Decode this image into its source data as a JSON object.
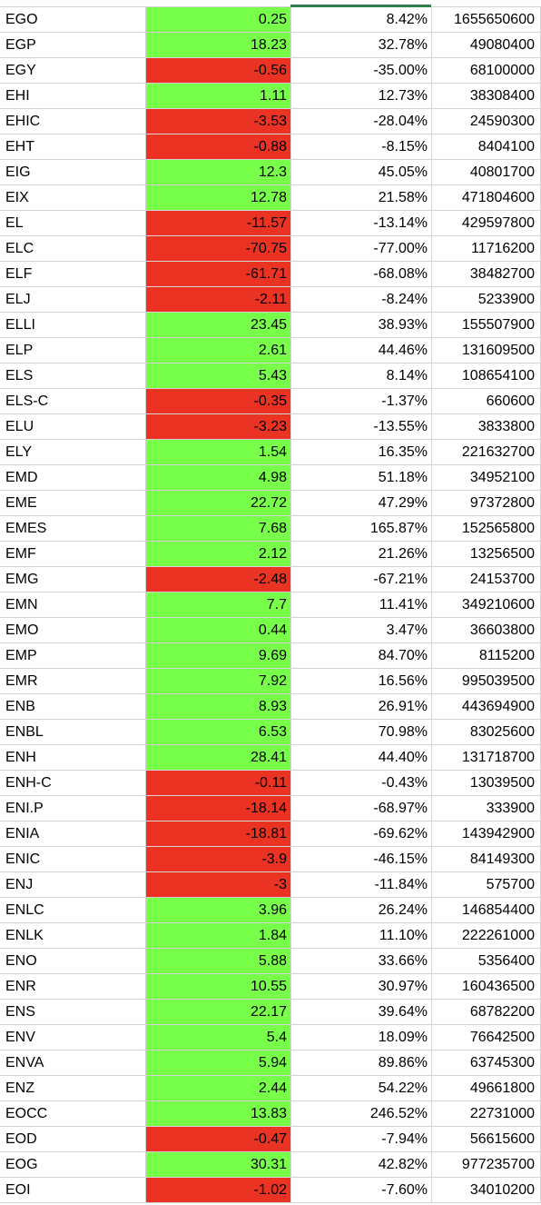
{
  "colors": {
    "positive": "#77ff49",
    "negative": "#ea3323",
    "grid": "#d4d4d4",
    "selection": "#2e7d4a"
  },
  "rows": [
    {
      "ticker": "EGO",
      "change": "0.25",
      "pct": "8.42%",
      "volume": "1655650600",
      "positive": true
    },
    {
      "ticker": "EGP",
      "change": "18.23",
      "pct": "32.78%",
      "volume": "49080400",
      "positive": true
    },
    {
      "ticker": "EGY",
      "change": "-0.56",
      "pct": "-35.00%",
      "volume": "68100000",
      "positive": false
    },
    {
      "ticker": "EHI",
      "change": "1.11",
      "pct": "12.73%",
      "volume": "38308400",
      "positive": true
    },
    {
      "ticker": "EHIC",
      "change": "-3.53",
      "pct": "-28.04%",
      "volume": "24590300",
      "positive": false
    },
    {
      "ticker": "EHT",
      "change": "-0.88",
      "pct": "-8.15%",
      "volume": "8404100",
      "positive": false
    },
    {
      "ticker": "EIG",
      "change": "12.3",
      "pct": "45.05%",
      "volume": "40801700",
      "positive": true
    },
    {
      "ticker": "EIX",
      "change": "12.78",
      "pct": "21.58%",
      "volume": "471804600",
      "positive": true
    },
    {
      "ticker": "EL",
      "change": "-11.57",
      "pct": "-13.14%",
      "volume": "429597800",
      "positive": false
    },
    {
      "ticker": "ELC",
      "change": "-70.75",
      "pct": "-77.00%",
      "volume": "11716200",
      "positive": false
    },
    {
      "ticker": "ELF",
      "change": "-61.71",
      "pct": "-68.08%",
      "volume": "38482700",
      "positive": false
    },
    {
      "ticker": "ELJ",
      "change": "-2.11",
      "pct": "-8.24%",
      "volume": "5233900",
      "positive": false
    },
    {
      "ticker": "ELLI",
      "change": "23.45",
      "pct": "38.93%",
      "volume": "155507900",
      "positive": true
    },
    {
      "ticker": "ELP",
      "change": "2.61",
      "pct": "44.46%",
      "volume": "131609500",
      "positive": true
    },
    {
      "ticker": "ELS",
      "change": "5.43",
      "pct": "8.14%",
      "volume": "108654100",
      "positive": true
    },
    {
      "ticker": "ELS-C",
      "change": "-0.35",
      "pct": "-1.37%",
      "volume": "660600",
      "positive": false
    },
    {
      "ticker": "ELU",
      "change": "-3.23",
      "pct": "-13.55%",
      "volume": "3833800",
      "positive": false
    },
    {
      "ticker": "ELY",
      "change": "1.54",
      "pct": "16.35%",
      "volume": "221632700",
      "positive": true
    },
    {
      "ticker": "EMD",
      "change": "4.98",
      "pct": "51.18%",
      "volume": "34952100",
      "positive": true
    },
    {
      "ticker": "EME",
      "change": "22.72",
      "pct": "47.29%",
      "volume": "97372800",
      "positive": true
    },
    {
      "ticker": "EMES",
      "change": "7.68",
      "pct": "165.87%",
      "volume": "152565800",
      "positive": true
    },
    {
      "ticker": "EMF",
      "change": "2.12",
      "pct": "21.26%",
      "volume": "13256500",
      "positive": true
    },
    {
      "ticker": "EMG",
      "change": "-2.48",
      "pct": "-67.21%",
      "volume": "24153700",
      "positive": false
    },
    {
      "ticker": "EMN",
      "change": "7.7",
      "pct": "11.41%",
      "volume": "349210600",
      "positive": true
    },
    {
      "ticker": "EMO",
      "change": "0.44",
      "pct": "3.47%",
      "volume": "36603800",
      "positive": true
    },
    {
      "ticker": "EMP",
      "change": "9.69",
      "pct": "84.70%",
      "volume": "8115200",
      "positive": true
    },
    {
      "ticker": "EMR",
      "change": "7.92",
      "pct": "16.56%",
      "volume": "995039500",
      "positive": true
    },
    {
      "ticker": "ENB",
      "change": "8.93",
      "pct": "26.91%",
      "volume": "443694900",
      "positive": true
    },
    {
      "ticker": "ENBL",
      "change": "6.53",
      "pct": "70.98%",
      "volume": "83025600",
      "positive": true
    },
    {
      "ticker": "ENH",
      "change": "28.41",
      "pct": "44.40%",
      "volume": "131718700",
      "positive": true
    },
    {
      "ticker": "ENH-C",
      "change": "-0.11",
      "pct": "-0.43%",
      "volume": "13039500",
      "positive": false
    },
    {
      "ticker": "ENI.P",
      "change": "-18.14",
      "pct": "-68.97%",
      "volume": "333900",
      "positive": false
    },
    {
      "ticker": "ENIA",
      "change": "-18.81",
      "pct": "-69.62%",
      "volume": "143942900",
      "positive": false
    },
    {
      "ticker": "ENIC",
      "change": "-3.9",
      "pct": "-46.15%",
      "volume": "84149300",
      "positive": false
    },
    {
      "ticker": "ENJ",
      "change": "-3",
      "pct": "-11.84%",
      "volume": "575700",
      "positive": false
    },
    {
      "ticker": "ENLC",
      "change": "3.96",
      "pct": "26.24%",
      "volume": "146854400",
      "positive": true
    },
    {
      "ticker": "ENLK",
      "change": "1.84",
      "pct": "11.10%",
      "volume": "222261000",
      "positive": true
    },
    {
      "ticker": "ENO",
      "change": "5.88",
      "pct": "33.66%",
      "volume": "5356400",
      "positive": true
    },
    {
      "ticker": "ENR",
      "change": "10.55",
      "pct": "30.97%",
      "volume": "160436500",
      "positive": true
    },
    {
      "ticker": "ENS",
      "change": "22.17",
      "pct": "39.64%",
      "volume": "68782200",
      "positive": true
    },
    {
      "ticker": "ENV",
      "change": "5.4",
      "pct": "18.09%",
      "volume": "76642500",
      "positive": true
    },
    {
      "ticker": "ENVA",
      "change": "5.94",
      "pct": "89.86%",
      "volume": "63745300",
      "positive": true
    },
    {
      "ticker": "ENZ",
      "change": "2.44",
      "pct": "54.22%",
      "volume": "49661800",
      "positive": true
    },
    {
      "ticker": "EOCC",
      "change": "13.83",
      "pct": "246.52%",
      "volume": "22731000",
      "positive": true
    },
    {
      "ticker": "EOD",
      "change": "-0.47",
      "pct": "-7.94%",
      "volume": "56615600",
      "positive": false
    },
    {
      "ticker": "EOG",
      "change": "30.31",
      "pct": "42.82%",
      "volume": "977235700",
      "positive": true
    },
    {
      "ticker": "EOI",
      "change": "-1.02",
      "pct": "-7.60%",
      "volume": "34010200",
      "positive": false
    }
  ]
}
